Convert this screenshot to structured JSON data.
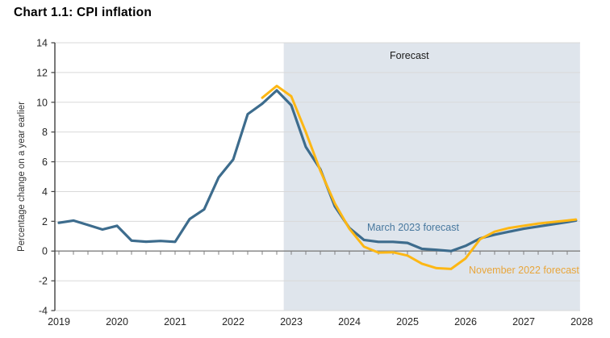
{
  "title": "Chart 1.1: CPI inflation",
  "chart_data": {
    "type": "line",
    "title": "Chart 1.1: CPI inflation",
    "xlabel": "",
    "ylabel": "Percentage change on a year earlier",
    "ylim": [
      -4,
      14
    ],
    "xlim": [
      2018.93,
      2027.97
    ],
    "y_ticks": [
      14,
      12,
      10,
      8,
      6,
      4,
      2,
      0,
      -2,
      -4
    ],
    "x_ticks": [
      2019,
      2020,
      2021,
      2022,
      2023,
      2024,
      2025,
      2026,
      2027,
      2028
    ],
    "quarter_tick_step": 0.25,
    "grid": true,
    "legend_position": "inline-annotations",
    "forecast_region": {
      "label": "Forecast",
      "start": 2022.87,
      "end": 2027.97,
      "fill": "#dfe5ec"
    },
    "series": [
      {
        "name": "March 2023 forecast",
        "color": "#3d6c8d",
        "label_color": "#48789e",
        "points": [
          [
            2019.0,
            1.9
          ],
          [
            2019.25,
            2.05
          ],
          [
            2019.5,
            1.75
          ],
          [
            2019.75,
            1.45
          ],
          [
            2020.0,
            1.7
          ],
          [
            2020.25,
            0.7
          ],
          [
            2020.5,
            0.63
          ],
          [
            2020.75,
            0.68
          ],
          [
            2021.0,
            0.62
          ],
          [
            2021.25,
            2.15
          ],
          [
            2021.5,
            2.8
          ],
          [
            2021.75,
            4.95
          ],
          [
            2022.0,
            6.15
          ],
          [
            2022.25,
            9.2
          ],
          [
            2022.5,
            9.9
          ],
          [
            2022.75,
            10.8
          ],
          [
            2023.0,
            9.8
          ],
          [
            2023.25,
            7.0
          ],
          [
            2023.5,
            5.5
          ],
          [
            2023.75,
            3.0
          ],
          [
            2024.0,
            1.55
          ],
          [
            2024.25,
            0.75
          ],
          [
            2024.5,
            0.62
          ],
          [
            2024.75,
            0.62
          ],
          [
            2025.0,
            0.55
          ],
          [
            2025.25,
            0.15
          ],
          [
            2025.5,
            0.08
          ],
          [
            2025.75,
            0.0
          ],
          [
            2026.0,
            0.35
          ],
          [
            2026.25,
            0.85
          ],
          [
            2026.5,
            1.1
          ],
          [
            2026.75,
            1.3
          ],
          [
            2027.0,
            1.5
          ],
          [
            2027.25,
            1.65
          ],
          [
            2027.5,
            1.8
          ],
          [
            2027.75,
            1.95
          ],
          [
            2027.9,
            2.05
          ]
        ]
      },
      {
        "name": "November 2022 forecast",
        "color": "#fdb714",
        "label_color": "#e8a63c",
        "points": [
          [
            2022.5,
            10.3
          ],
          [
            2022.75,
            11.1
          ],
          [
            2023.0,
            10.4
          ],
          [
            2023.25,
            8.0
          ],
          [
            2023.5,
            5.4
          ],
          [
            2023.75,
            3.2
          ],
          [
            2024.0,
            1.5
          ],
          [
            2024.25,
            0.3
          ],
          [
            2024.5,
            -0.1
          ],
          [
            2024.75,
            -0.08
          ],
          [
            2025.0,
            -0.3
          ],
          [
            2025.25,
            -0.85
          ],
          [
            2025.5,
            -1.15
          ],
          [
            2025.75,
            -1.2
          ],
          [
            2026.0,
            -0.5
          ],
          [
            2026.25,
            0.8
          ],
          [
            2026.5,
            1.3
          ],
          [
            2026.75,
            1.55
          ],
          [
            2027.0,
            1.7
          ],
          [
            2027.25,
            1.85
          ],
          [
            2027.5,
            1.95
          ],
          [
            2027.75,
            2.05
          ],
          [
            2027.9,
            2.12
          ]
        ]
      }
    ],
    "annotations": [
      {
        "id": "forecast",
        "text": "Forecast"
      },
      {
        "id": "march",
        "text": "March 2023 forecast"
      },
      {
        "id": "november",
        "text": "November 2022 forecast"
      }
    ],
    "axis_colors": {
      "y_axis": "#404040",
      "zero_line": "#7f7f7f",
      "gridline": "#d9d9d9",
      "tick_text": "#262626",
      "ylabel_text": "#333333"
    }
  }
}
